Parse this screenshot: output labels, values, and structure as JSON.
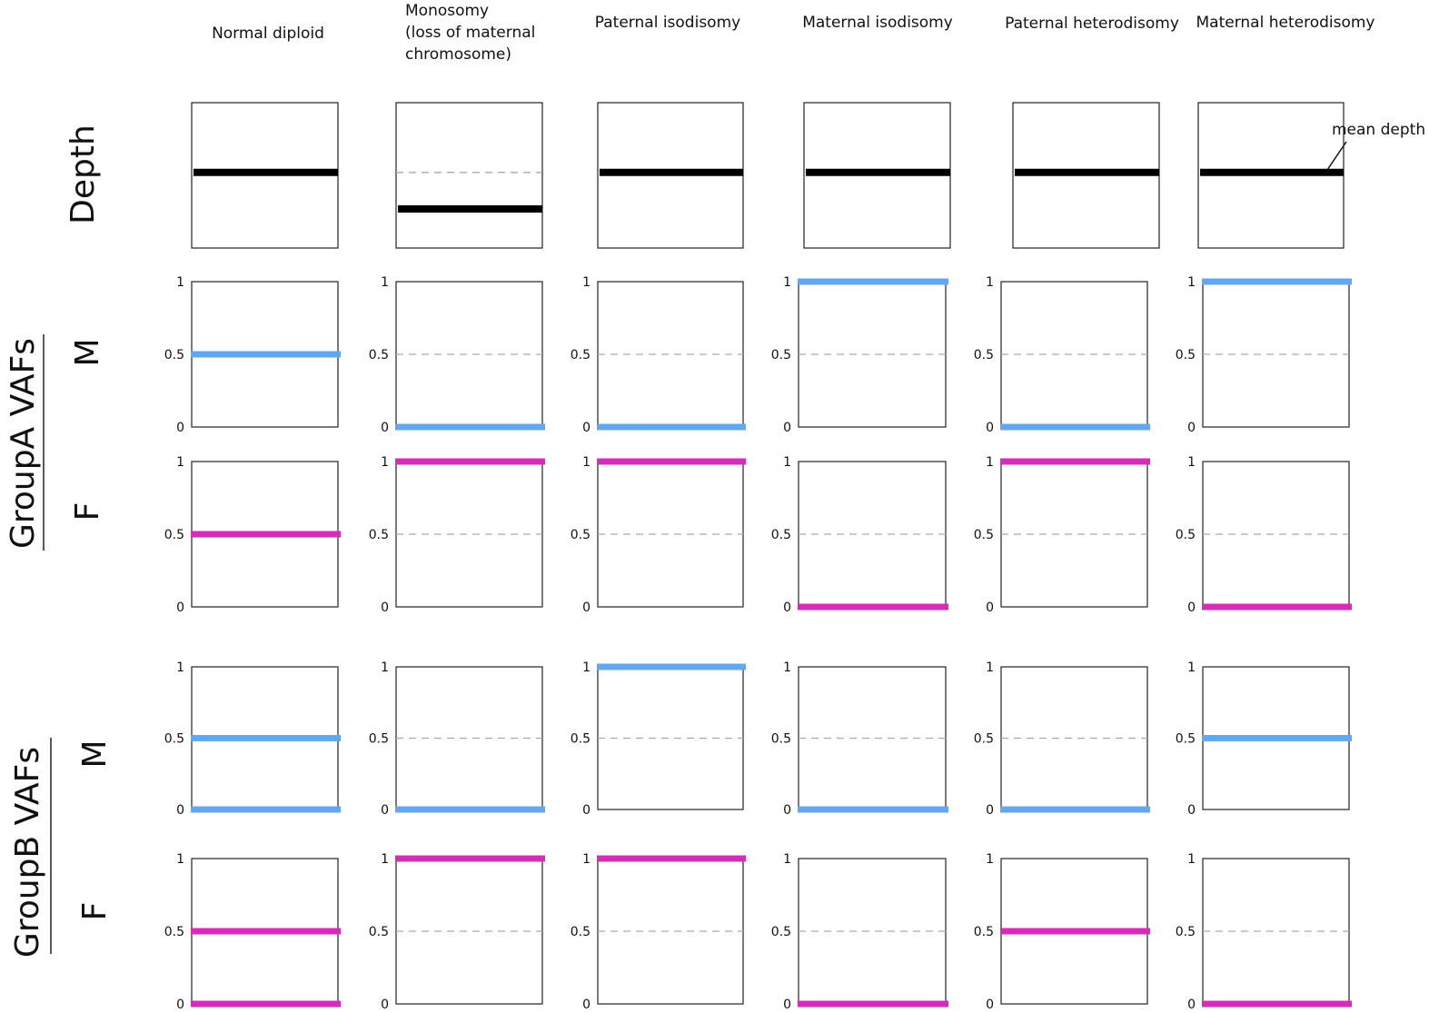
{
  "columns": [
    {
      "lines": [
        "Normal diploid"
      ]
    },
    {
      "lines": [
        "Monosomy",
        "(loss of maternal",
        "chromosome)"
      ]
    },
    {
      "lines": [
        "Paternal isodisomy"
      ]
    },
    {
      "lines": [
        "Maternal isodisomy"
      ]
    },
    {
      "lines": [
        "Paternal heterodisomy"
      ]
    },
    {
      "lines": [
        "Maternal heterodisomy"
      ]
    }
  ],
  "row_labels": {
    "depth": "Depth",
    "group_a": "GroupA VAFs",
    "group_b": "GroupB VAFs",
    "m": "M",
    "f": "F"
  },
  "annotation": "mean depth",
  "colors": {
    "depth": "#000000",
    "M": "#62a8f0",
    "F": "#d62db8",
    "frame": "#222222",
    "reference": "#aaaaaa"
  },
  "chart_data": {
    "type": "line",
    "y_ticks": [
      "0",
      "0.5",
      "1"
    ],
    "ylim": [
      0,
      1
    ],
    "depth": {
      "reference": 1,
      "values": [
        1,
        0.5,
        1,
        1,
        1,
        1
      ]
    },
    "group_a": {
      "M": [
        [
          0.5
        ],
        [
          0
        ],
        [
          0
        ],
        [
          1
        ],
        [
          0
        ],
        [
          1
        ]
      ],
      "F": [
        [
          0.5
        ],
        [
          1
        ],
        [
          1
        ],
        [
          0
        ],
        [
          1
        ],
        [
          0
        ]
      ]
    },
    "group_b": {
      "M": [
        [
          0.5,
          0
        ],
        [
          0
        ],
        [
          1
        ],
        [
          0
        ],
        [
          0
        ],
        [
          0.5
        ]
      ],
      "F": [
        [
          0.5,
          0
        ],
        [
          1
        ],
        [
          1
        ],
        [
          0
        ],
        [
          0.5
        ],
        [
          0
        ]
      ]
    }
  }
}
